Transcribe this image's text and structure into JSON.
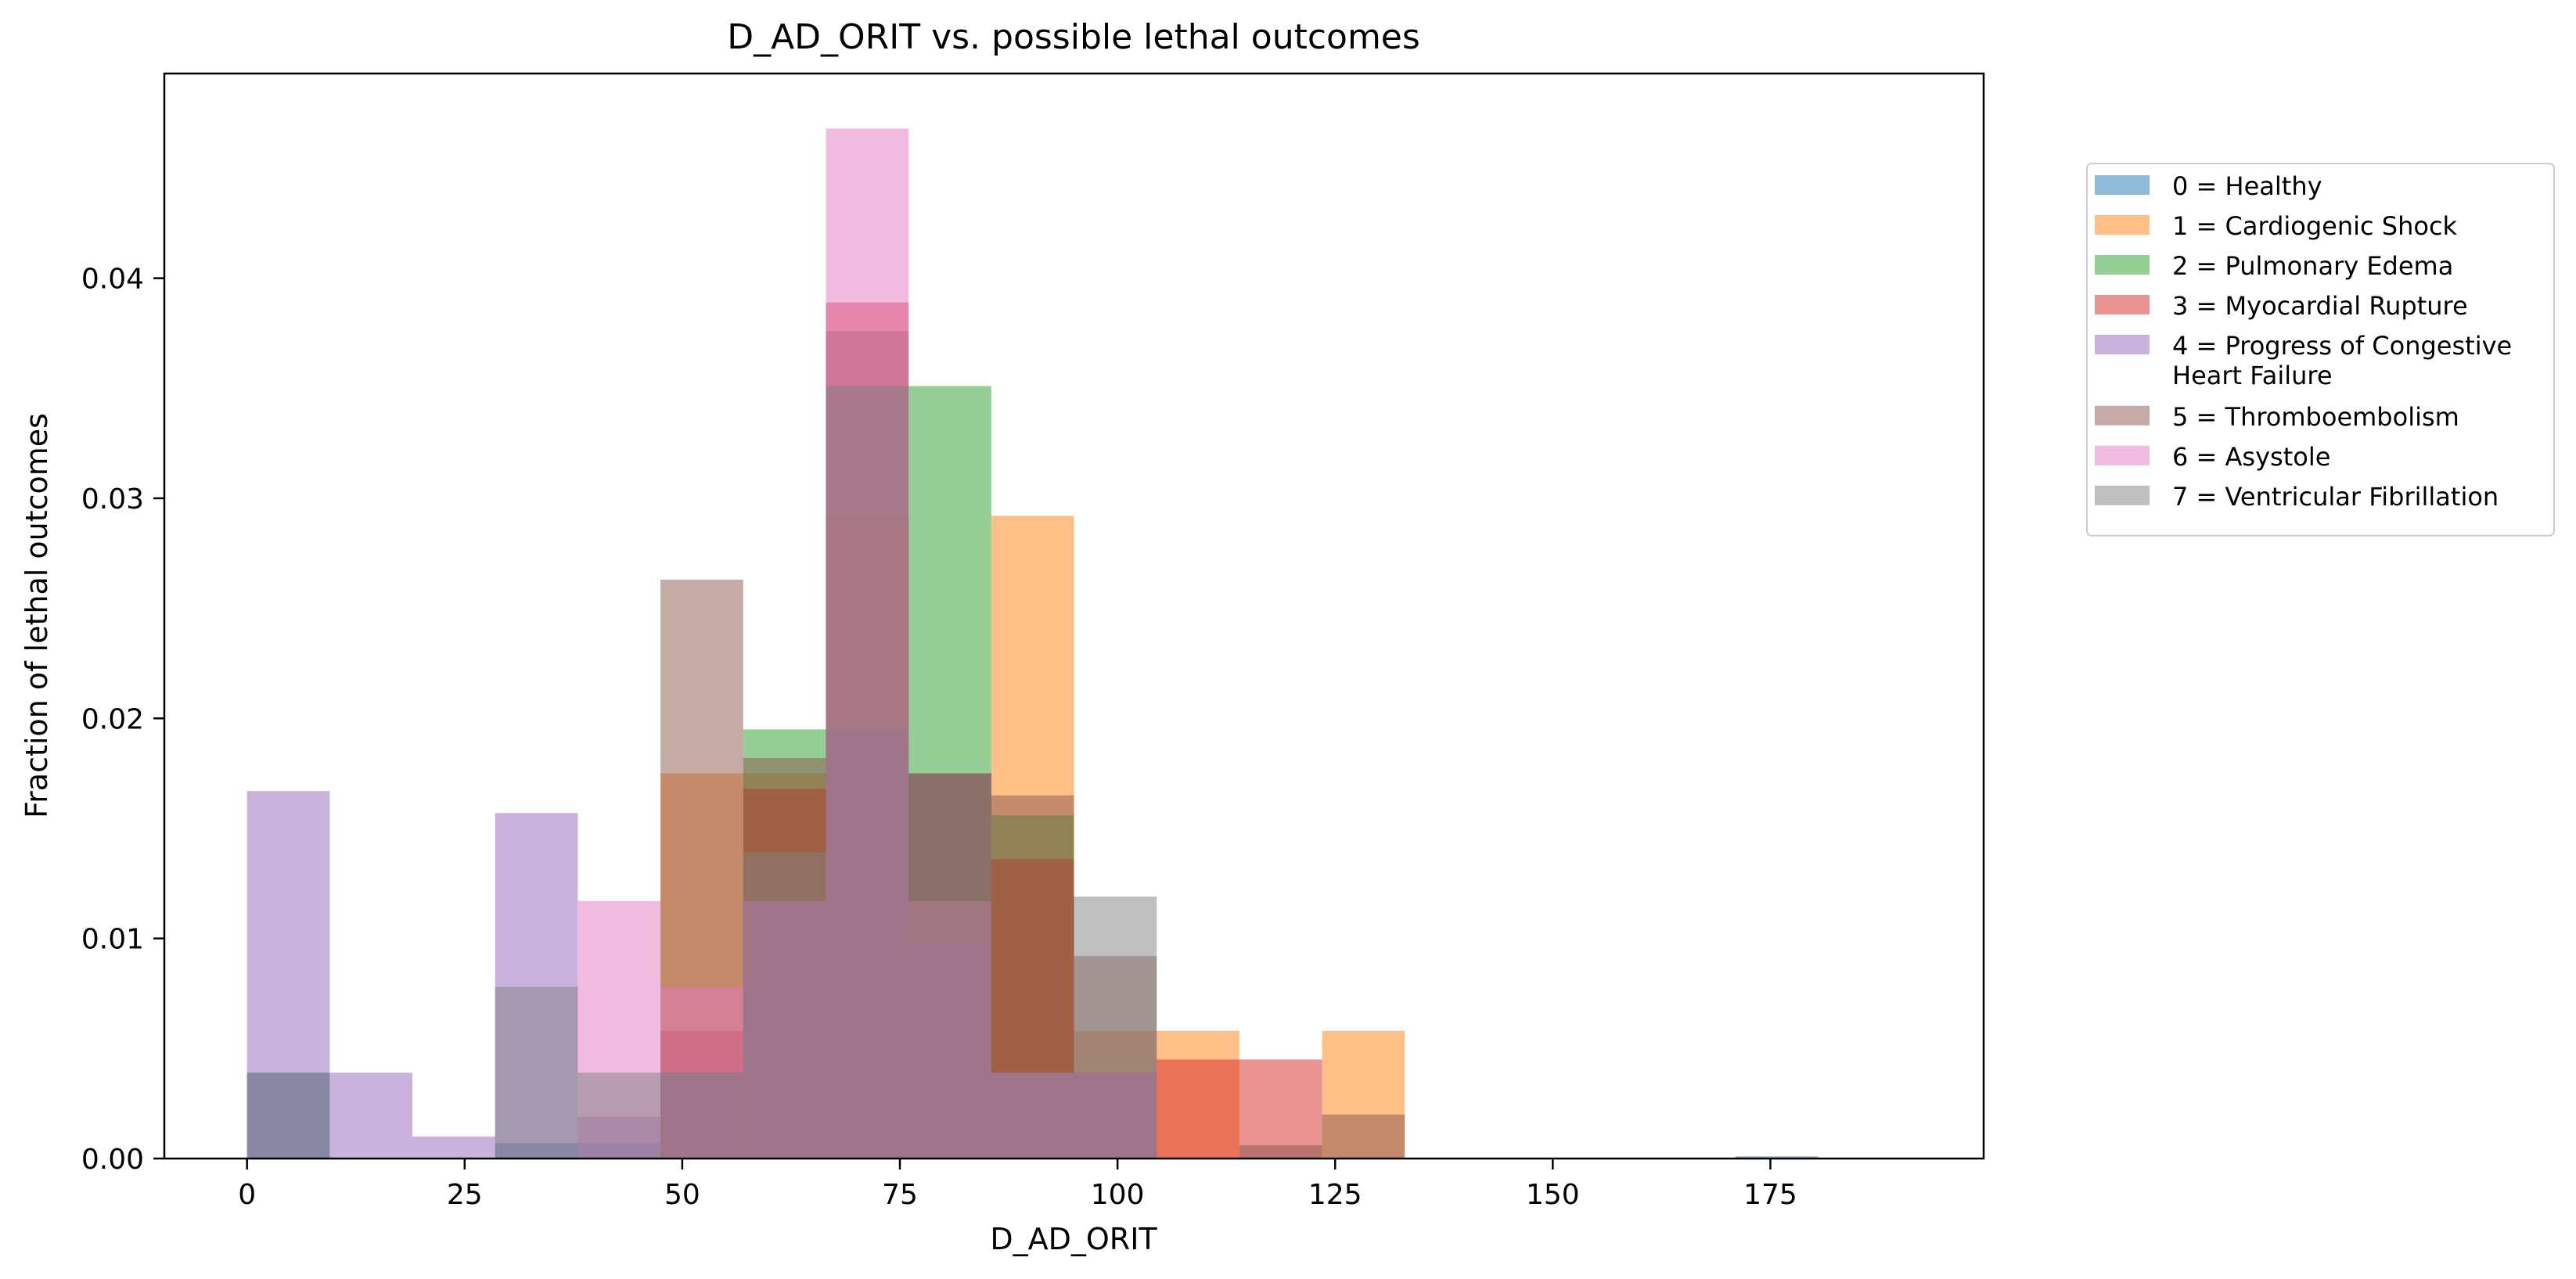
{
  "chart_data": {
    "type": "bar",
    "title": "D_AD_ORIT vs. possible lethal outcomes",
    "xlabel": "D_AD_ORIT",
    "ylabel": "Fraction of lethal outcomes",
    "xlim": [
      -9.5,
      199.5
    ],
    "ylim": [
      0,
      0.0493
    ],
    "xticks": [
      0,
      25,
      50,
      75,
      100,
      125,
      150,
      175
    ],
    "xtick_labels": [
      "0",
      "25",
      "50",
      "75",
      "100",
      "125",
      "150",
      "175"
    ],
    "yticks": [
      0.0,
      0.01,
      0.02,
      0.03,
      0.04
    ],
    "ytick_labels": [
      "0.00",
      "0.01",
      "0.02",
      "0.03",
      "0.04"
    ],
    "bin_edges": [
      0,
      9.5,
      19,
      28.5,
      38,
      47.5,
      57,
      66.5,
      76,
      85.5,
      95,
      104.5,
      114,
      123.5,
      133,
      142.5,
      152,
      161.5,
      171,
      180.5,
      190
    ],
    "legend_position": "outside right, upper",
    "series": [
      {
        "name": "0 = Healthy",
        "color": "#1f77b4",
        "values": [
          0.0039,
          0,
          0,
          0.0007,
          0.0007,
          0.0039,
          0.0117,
          0.0195,
          0.0175,
          0.0039,
          0.0029,
          0,
          0,
          0,
          0,
          0,
          0,
          0,
          0.0001,
          0
        ]
      },
      {
        "name": "1 = Cardiogenic Shock",
        "color": "#ff7f0e",
        "values": [
          0,
          0,
          0,
          0,
          0,
          0.0175,
          0.0175,
          0.0292,
          0.0117,
          0.0292,
          0.0058,
          0.0058,
          0,
          0.0058,
          0,
          0,
          0,
          0,
          0,
          0
        ]
      },
      {
        "name": "2 = Pulmonary Edema",
        "color": "#2ca02c",
        "values": [
          0,
          0,
          0,
          0,
          0,
          0.0039,
          0.0195,
          0.0175,
          0.0351,
          0.0156,
          0.0039,
          0,
          0,
          0,
          0,
          0,
          0,
          0,
          0,
          0
        ]
      },
      {
        "name": "3 = Myocardial Rupture",
        "color": "#d62728",
        "values": [
          0,
          0,
          0,
          0,
          0,
          0.0058,
          0.0168,
          0.0389,
          0.0175,
          0.0136,
          0.0039,
          0.0045,
          0.0045,
          0,
          0,
          0,
          0,
          0,
          0,
          0
        ]
      },
      {
        "name": "4 = Progress of Congestive Heart Failure",
        "color": "#9467bd",
        "values": [
          0.0167,
          0.0039,
          0.001,
          0.0157,
          0.0019,
          0.0039,
          0.0117,
          0.0195,
          0.0098,
          0.0039,
          0.0039,
          0,
          0,
          0,
          0,
          0,
          0,
          0,
          0,
          0
        ]
      },
      {
        "name": "5 = Thromboembolism",
        "color": "#8c564b",
        "values": [
          0,
          0,
          0,
          0,
          0,
          0.0263,
          0.0182,
          0.0376,
          0.0175,
          0.0165,
          0.0092,
          0,
          0.0006,
          0.002,
          0,
          0,
          0,
          0,
          0,
          0
        ]
      },
      {
        "name": "6 = Asystole",
        "color": "#e377c2",
        "values": [
          0,
          0,
          0,
          0,
          0.0117,
          0.0078,
          0.0117,
          0.0468,
          0.0117,
          0.0039,
          0.0039,
          0,
          0,
          0,
          0,
          0,
          0,
          0,
          0,
          0
        ]
      },
      {
        "name": "7 = Ventricular Fibrillation",
        "color": "#7f7f7f",
        "values": [
          0.0039,
          0,
          0,
          0.0078,
          0.0039,
          0.0039,
          0.0139,
          0.0351,
          0.0175,
          0.0039,
          0.0119,
          0,
          0,
          0,
          0,
          0,
          0,
          0,
          0,
          0
        ]
      }
    ]
  }
}
